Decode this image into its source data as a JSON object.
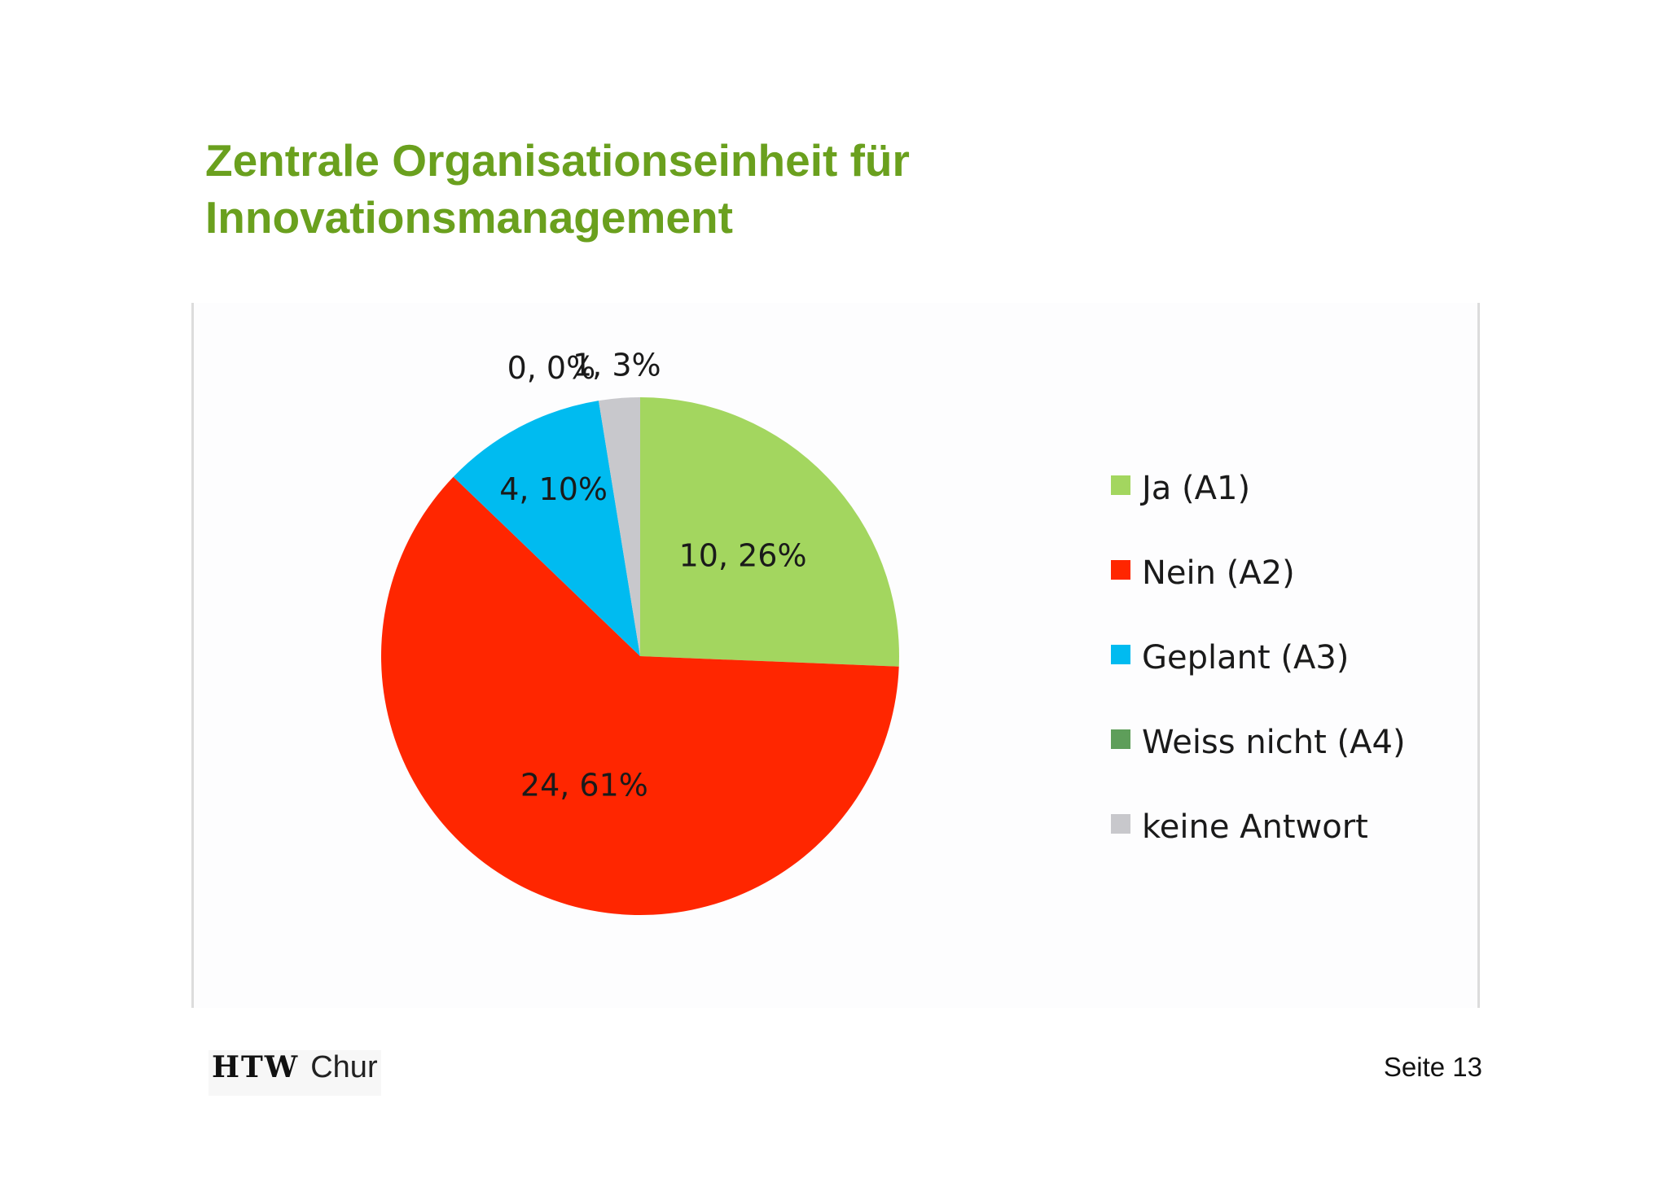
{
  "slide": {
    "title_line1": "Zentrale Organisationseinheit für",
    "title_line2": "Innovationsmanagement"
  },
  "footer": {
    "logo_bold": "HTW",
    "logo_text": "Chur",
    "page_label": "Seite 13"
  },
  "chart_data": {
    "type": "pie",
    "title": "",
    "legend_position": "right",
    "slices": [
      {
        "name": "Ja (A1)",
        "value": 10,
        "percent": 26,
        "label": "10, 26%",
        "color": "#a3d65f"
      },
      {
        "name": "Nein (A2)",
        "value": 24,
        "percent": 61,
        "label": "24, 61%",
        "color": "#ff2600"
      },
      {
        "name": "Geplant (A3)",
        "value": 4,
        "percent": 10,
        "label": "4, 10%",
        "color": "#00bbf0"
      },
      {
        "name": "Weiss nicht (A4)",
        "value": 0,
        "percent": 0,
        "label": "0, 0%",
        "color": "#5e9e5a"
      },
      {
        "name": "keine Antwort",
        "value": 1,
        "percent": 3,
        "label": "1, 3%",
        "color": "#c8c8cc"
      }
    ]
  }
}
